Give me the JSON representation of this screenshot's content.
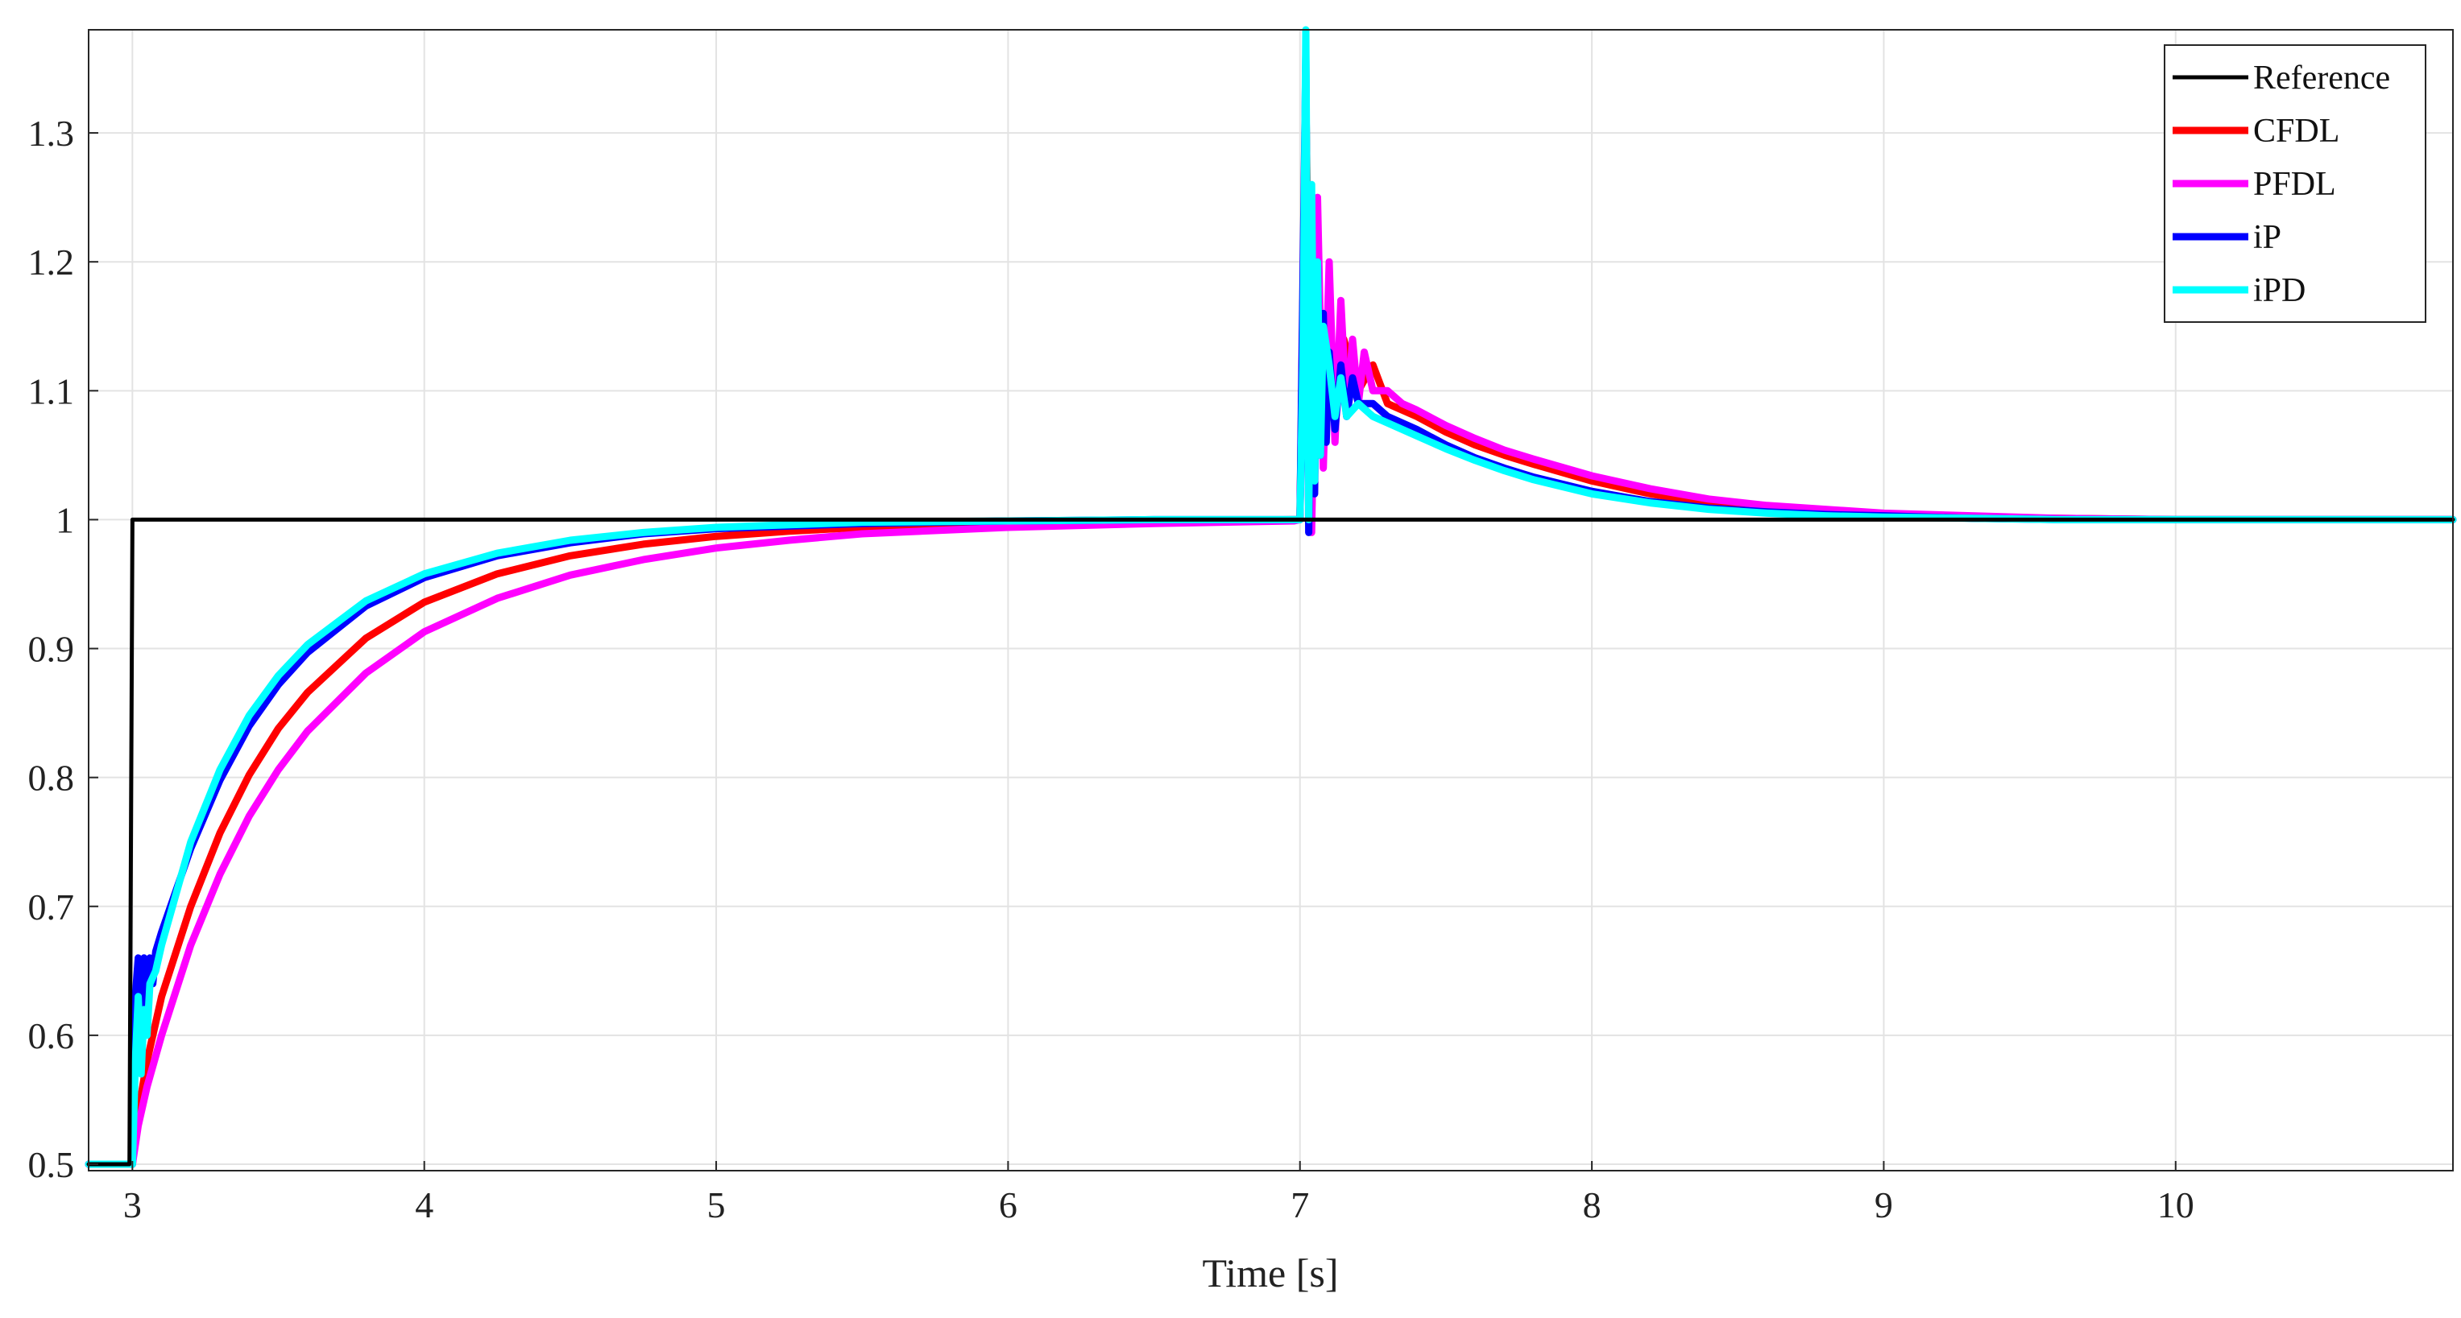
{
  "chart_data": {
    "type": "line",
    "title": "",
    "xlabel": "Time [s]",
    "ylabel": "",
    "xlim": [
      2.85,
      10.95
    ],
    "ylim": [
      0.495,
      1.38
    ],
    "xticks": [
      3,
      4,
      5,
      6,
      7,
      8,
      9,
      10
    ],
    "xtick_labels": [
      "3",
      "4",
      "5",
      "6",
      "7",
      "8",
      "9",
      "10"
    ],
    "yticks": [
      0.5,
      0.6,
      0.7,
      0.8,
      0.9,
      1.0,
      1.1,
      1.2,
      1.3
    ],
    "ytick_labels": [
      "0.5",
      "0.6",
      "0.7",
      "0.8",
      "0.9",
      "1",
      "1.1",
      "1.2",
      "1.3"
    ],
    "grid": true,
    "legend_position": "top-right",
    "series": [
      {
        "name": "Reference",
        "color": "#000000",
        "x": [
          2.85,
          2.99,
          3.0,
          10.95
        ],
        "y": [
          0.5,
          0.5,
          1.0,
          1.0
        ]
      },
      {
        "name": "CFDL",
        "color": "#ff0000",
        "x": [
          2.85,
          3.0,
          3.02,
          3.05,
          3.1,
          3.2,
          3.3,
          3.4,
          3.5,
          3.6,
          3.8,
          4.0,
          4.25,
          4.5,
          4.75,
          5.0,
          5.25,
          5.5,
          6.0,
          6.5,
          6.98,
          7.0,
          7.02,
          7.04,
          7.06,
          7.08,
          7.1,
          7.12,
          7.15,
          7.2,
          7.25,
          7.3,
          7.4,
          7.5,
          7.6,
          7.7,
          7.8,
          8.0,
          8.2,
          8.4,
          8.6,
          8.8,
          9.0,
          9.3,
          9.6,
          10.0,
          10.5,
          10.95
        ],
        "y": [
          0.5,
          0.5,
          0.54,
          0.58,
          0.63,
          0.7,
          0.757,
          0.802,
          0.838,
          0.866,
          0.908,
          0.936,
          0.958,
          0.972,
          0.981,
          0.987,
          0.991,
          0.994,
          0.997,
          0.999,
          1.0,
          1.0,
          1.33,
          1.0,
          1.22,
          1.06,
          1.17,
          1.08,
          1.14,
          1.1,
          1.12,
          1.09,
          1.08,
          1.068,
          1.058,
          1.05,
          1.043,
          1.03,
          1.02,
          1.013,
          1.009,
          1.006,
          1.004,
          1.002,
          1.001,
          1.0,
          1.0,
          1.0
        ]
      },
      {
        "name": "PFDL",
        "color": "#ff00ff",
        "x": [
          2.85,
          3.0,
          3.02,
          3.05,
          3.1,
          3.2,
          3.3,
          3.4,
          3.5,
          3.6,
          3.8,
          4.0,
          4.25,
          4.5,
          4.75,
          5.0,
          5.25,
          5.5,
          6.0,
          6.5,
          6.98,
          7.0,
          7.02,
          7.04,
          7.06,
          7.08,
          7.1,
          7.12,
          7.14,
          7.16,
          7.18,
          7.2,
          7.22,
          7.25,
          7.3,
          7.35,
          7.4,
          7.5,
          7.6,
          7.7,
          7.8,
          8.0,
          8.2,
          8.4,
          8.6,
          8.8,
          9.0,
          9.3,
          9.6,
          10.0,
          10.5,
          10.95
        ],
        "y": [
          0.5,
          0.5,
          0.53,
          0.56,
          0.6,
          0.67,
          0.725,
          0.77,
          0.806,
          0.836,
          0.881,
          0.913,
          0.939,
          0.957,
          0.969,
          0.978,
          0.984,
          0.989,
          0.994,
          0.997,
          0.999,
          1.0,
          1.28,
          0.99,
          1.25,
          1.04,
          1.2,
          1.06,
          1.17,
          1.08,
          1.14,
          1.09,
          1.13,
          1.1,
          1.1,
          1.09,
          1.085,
          1.073,
          1.063,
          1.054,
          1.047,
          1.034,
          1.024,
          1.016,
          1.011,
          1.008,
          1.005,
          1.003,
          1.001,
          1.0,
          1.0,
          1.0
        ]
      },
      {
        "name": "iP",
        "color": "#0000ff",
        "x": [
          2.85,
          3.0,
          3.01,
          3.02,
          3.03,
          3.04,
          3.05,
          3.06,
          3.07,
          3.08,
          3.1,
          3.2,
          3.3,
          3.4,
          3.5,
          3.6,
          3.8,
          4.0,
          4.25,
          4.5,
          4.75,
          5.0,
          5.25,
          5.5,
          6.0,
          6.5,
          6.98,
          7.0,
          7.02,
          7.03,
          7.04,
          7.05,
          7.06,
          7.07,
          7.08,
          7.09,
          7.1,
          7.12,
          7.14,
          7.16,
          7.18,
          7.2,
          7.25,
          7.3,
          7.4,
          7.5,
          7.6,
          7.7,
          7.8,
          8.0,
          8.2,
          8.4,
          8.6,
          8.8,
          9.0,
          9.3,
          9.6,
          10.0,
          10.95
        ],
        "y": [
          0.5,
          0.5,
          0.63,
          0.66,
          0.61,
          0.66,
          0.63,
          0.66,
          0.64,
          0.665,
          0.68,
          0.745,
          0.798,
          0.84,
          0.872,
          0.897,
          0.933,
          0.955,
          0.972,
          0.982,
          0.989,
          0.993,
          0.995,
          0.997,
          0.999,
          1.0,
          1.0,
          1.0,
          1.36,
          0.99,
          1.23,
          1.02,
          1.2,
          1.05,
          1.16,
          1.06,
          1.13,
          1.07,
          1.12,
          1.08,
          1.11,
          1.09,
          1.09,
          1.08,
          1.07,
          1.058,
          1.048,
          1.04,
          1.033,
          1.022,
          1.014,
          1.009,
          1.006,
          1.004,
          1.003,
          1.001,
          1.0,
          1.0,
          1.0
        ]
      },
      {
        "name": "iPD",
        "color": "#00ffff",
        "x": [
          2.85,
          3.0,
          3.01,
          3.02,
          3.03,
          3.04,
          3.05,
          3.06,
          3.08,
          3.1,
          3.2,
          3.3,
          3.4,
          3.5,
          3.6,
          3.8,
          4.0,
          4.25,
          4.5,
          4.75,
          5.0,
          5.25,
          5.5,
          6.0,
          6.5,
          6.98,
          7.0,
          7.01,
          7.02,
          7.03,
          7.04,
          7.05,
          7.06,
          7.07,
          7.08,
          7.1,
          7.12,
          7.14,
          7.16,
          7.2,
          7.25,
          7.3,
          7.4,
          7.5,
          7.6,
          7.7,
          7.8,
          8.0,
          8.2,
          8.4,
          8.6,
          8.8,
          9.0,
          9.3,
          9.6,
          10.0,
          10.95
        ],
        "y": [
          0.5,
          0.5,
          0.58,
          0.63,
          0.57,
          0.62,
          0.6,
          0.64,
          0.65,
          0.67,
          0.75,
          0.806,
          0.848,
          0.879,
          0.903,
          0.937,
          0.958,
          0.974,
          0.984,
          0.99,
          0.994,
          0.996,
          0.998,
          0.999,
          1.0,
          1.0,
          1.0,
          1.12,
          1.38,
          1.0,
          1.26,
          1.03,
          1.2,
          1.05,
          1.15,
          1.12,
          1.08,
          1.11,
          1.08,
          1.09,
          1.08,
          1.075,
          1.065,
          1.055,
          1.046,
          1.038,
          1.031,
          1.02,
          1.013,
          1.008,
          1.005,
          1.003,
          1.002,
          1.001,
          1.0,
          1.0,
          1.0
        ]
      }
    ]
  }
}
